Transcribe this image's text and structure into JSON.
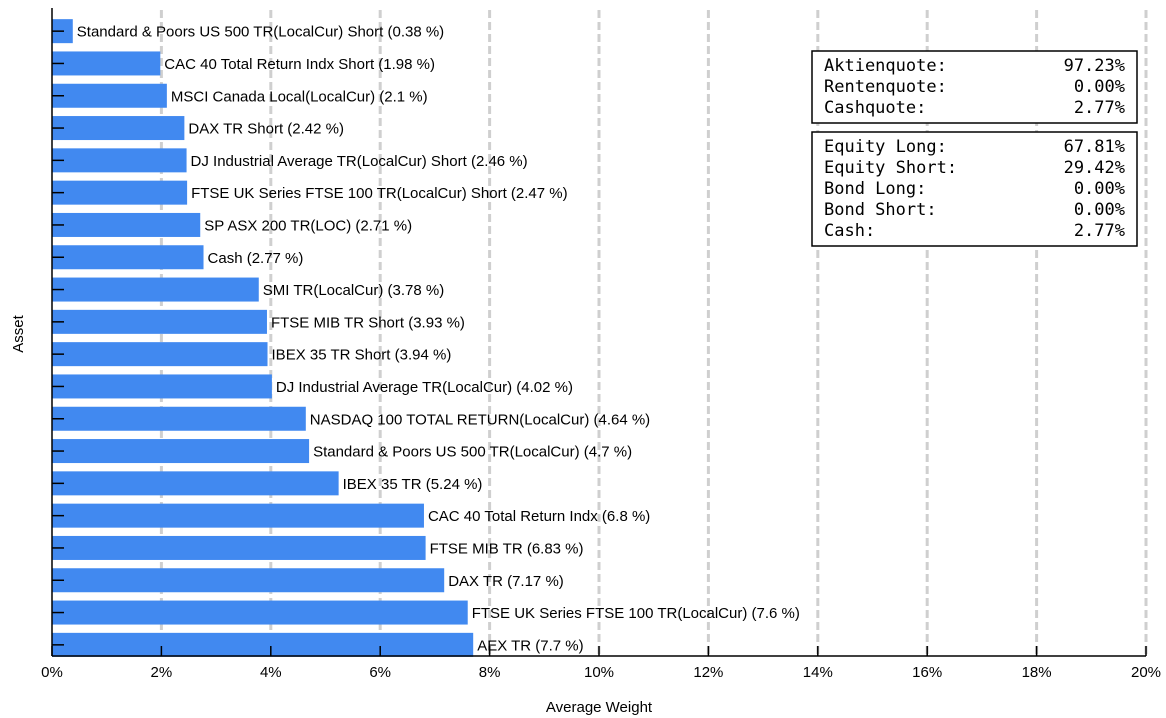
{
  "chart_data": {
    "type": "bar",
    "orientation": "horizontal",
    "title": "",
    "xlabel": "Average Weight",
    "ylabel": "Asset",
    "xlim": [
      0,
      20
    ],
    "x_ticks": [
      "0%",
      "2%",
      "4%",
      "6%",
      "8%",
      "10%",
      "12%",
      "14%",
      "16%",
      "18%",
      "20%"
    ],
    "grid": "vertical dashed",
    "bar_color": "#4189f0",
    "categories": [
      "Standard & Poors US 500 TR(LocalCur) Short",
      "CAC 40 Total Return Indx Short",
      "MSCI Canada Local(LocalCur)",
      "DAX TR Short",
      "DJ Industrial Average TR(LocalCur) Short",
      "FTSE UK Series FTSE 100 TR(LocalCur) Short",
      "SP ASX 200 TR(LOC)",
      "Cash",
      "SMI TR(LocalCur)",
      "FTSE MIB TR Short",
      "IBEX 35 TR Short",
      "DJ Industrial Average TR(LocalCur)",
      "NASDAQ 100 TOTAL RETURN(LocalCur)",
      "Standard & Poors US 500 TR(LocalCur)",
      "IBEX 35 TR",
      "CAC 40 Total Return Indx",
      "FTSE MIB TR",
      "DAX TR",
      "FTSE UK Series FTSE 100 TR(LocalCur)",
      "AEX TR"
    ],
    "values": [
      0.38,
      1.98,
      2.1,
      2.42,
      2.46,
      2.47,
      2.71,
      2.77,
      3.78,
      3.93,
      3.94,
      4.02,
      4.64,
      4.7,
      5.24,
      6.8,
      6.83,
      7.17,
      7.6,
      7.7
    ],
    "bar_labels": [
      "Standard & Poors US 500 TR(LocalCur) Short (0.38 %)",
      "CAC 40 Total Return Indx Short (1.98 %)",
      "MSCI Canada Local(LocalCur) (2.1 %)",
      "DAX TR Short (2.42 %)",
      "DJ Industrial Average TR(LocalCur) Short (2.46 %)",
      "FTSE UK Series FTSE 100 TR(LocalCur) Short (2.47 %)",
      "SP ASX 200 TR(LOC) (2.71 %)",
      "Cash (2.77 %)",
      "SMI TR(LocalCur) (3.78 %)",
      "FTSE MIB TR Short (3.93 %)",
      "IBEX 35 TR Short (3.94 %)",
      "DJ Industrial Average TR(LocalCur) (4.02 %)",
      "NASDAQ 100 TOTAL RETURN(LocalCur) (4.64 %)",
      "Standard & Poors US 500 TR(LocalCur) (4.7 %)",
      "IBEX 35 TR (5.24 %)",
      "CAC 40 Total Return Indx (6.8 %)",
      "FTSE MIB TR (6.83 %)",
      "DAX TR (7.17 %)",
      "FTSE UK Series FTSE 100 TR(LocalCur) (7.6 %)",
      "AEX TR (7.7 %)"
    ],
    "annotations": [
      {
        "rows": [
          {
            "label": "Aktienquote:",
            "value": "97.23%"
          },
          {
            "label": "Rentenquote:",
            "value": "0.00%"
          },
          {
            "label": "Cashquote:",
            "value": "2.77%"
          }
        ]
      },
      {
        "rows": [
          {
            "label": "Equity Long:",
            "value": "67.81%"
          },
          {
            "label": "Equity Short:",
            "value": "29.42%"
          },
          {
            "label": "Bond Long:",
            "value": "0.00%"
          },
          {
            "label": "Bond Short:",
            "value": "0.00%"
          },
          {
            "label": "Cash:",
            "value": "2.77%"
          }
        ]
      }
    ]
  }
}
